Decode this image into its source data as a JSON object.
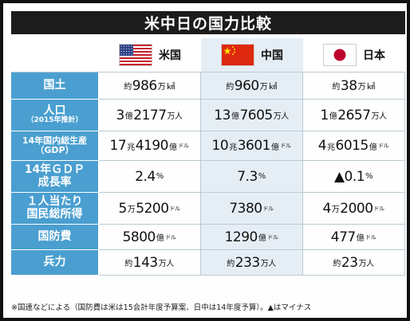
{
  "title": "米中日の国力比較",
  "countries": [
    {
      "name": "米国",
      "flag": "us-flag-icon"
    },
    {
      "name": "中国",
      "flag": "cn-flag-icon"
    },
    {
      "name": "日本",
      "flag": "jp-flag-icon"
    }
  ],
  "rows": [
    {
      "label_lines": [
        "国土"
      ],
      "values": [
        {
          "pre": "約",
          "parts": [
            [
              "986",
              "万"
            ],
            [
              "",
              "㎢"
            ]
          ]
        },
        {
          "pre": "約",
          "parts": [
            [
              "960",
              "万"
            ],
            [
              "",
              "㎢"
            ]
          ]
        },
        {
          "pre": "約",
          "parts": [
            [
              "38",
              "万"
            ],
            [
              "",
              "㎢"
            ]
          ]
        }
      ]
    },
    {
      "label_lines": [
        "人口",
        "（2015年推計）"
      ],
      "values": [
        {
          "pre": "",
          "parts": [
            [
              "3",
              "億"
            ],
            [
              "2177",
              "万人"
            ]
          ]
        },
        {
          "pre": "",
          "parts": [
            [
              "13",
              "億"
            ],
            [
              "7605",
              "万人"
            ]
          ]
        },
        {
          "pre": "",
          "parts": [
            [
              "1",
              "億"
            ],
            [
              "2657",
              "万人"
            ]
          ]
        }
      ]
    },
    {
      "label_lines": [
        "14年国内総生産",
        "（GDP）"
      ],
      "values": [
        {
          "pre": "",
          "parts": [
            [
              "17",
              "兆"
            ],
            [
              "4190",
              "億"
            ],
            [
              "",
              "ドル"
            ]
          ]
        },
        {
          "pre": "",
          "parts": [
            [
              "10",
              "兆"
            ],
            [
              "3601",
              "億"
            ],
            [
              "",
              "ドル"
            ]
          ]
        },
        {
          "pre": "",
          "parts": [
            [
              "4",
              "兆"
            ],
            [
              "6015",
              "億"
            ],
            [
              "",
              "ドル"
            ]
          ]
        }
      ]
    },
    {
      "label_lines": [
        "14年ＧＤＰ",
        "成長率"
      ],
      "values": [
        {
          "pre": "",
          "parts": [
            [
              "2.4",
              "%"
            ]
          ]
        },
        {
          "pre": "",
          "parts": [
            [
              "7.3",
              "%"
            ]
          ]
        },
        {
          "pre": "",
          "parts": [
            [
              "▲0.1",
              "%"
            ]
          ]
        }
      ]
    },
    {
      "label_lines": [
        "１人当たり",
        "国民総所得"
      ],
      "values": [
        {
          "pre": "",
          "parts": [
            [
              "5",
              "万"
            ],
            [
              "5200",
              "ドル"
            ]
          ]
        },
        {
          "pre": "",
          "parts": [
            [
              "7380",
              "ドル"
            ]
          ]
        },
        {
          "pre": "",
          "parts": [
            [
              "4",
              "万"
            ],
            [
              "2000",
              "ドル"
            ]
          ]
        }
      ]
    },
    {
      "label_lines": [
        "国防費"
      ],
      "values": [
        {
          "pre": "",
          "parts": [
            [
              "5800",
              "億"
            ],
            [
              "",
              "ドル"
            ]
          ]
        },
        {
          "pre": "",
          "parts": [
            [
              "1290",
              "億"
            ],
            [
              "",
              "ドル"
            ]
          ]
        },
        {
          "pre": "",
          "parts": [
            [
              "477",
              "億"
            ],
            [
              "",
              "ドル"
            ]
          ]
        }
      ]
    },
    {
      "label_lines": [
        "兵力"
      ],
      "values": [
        {
          "pre": "約",
          "parts": [
            [
              "143",
              "万人"
            ]
          ]
        },
        {
          "pre": "約",
          "parts": [
            [
              "233",
              "万人"
            ]
          ]
        },
        {
          "pre": "約",
          "parts": [
            [
              "23",
              "万人"
            ]
          ]
        }
      ]
    }
  ],
  "footnote": "※国連などによる（国防費は米は15会計年度予算案、日中は14年度予算）。▲はマイナス",
  "colors": {
    "label_bg": "#4a9fd0",
    "china_col_bg": "#e6eef5",
    "title_bg": "#1c1c1c"
  }
}
